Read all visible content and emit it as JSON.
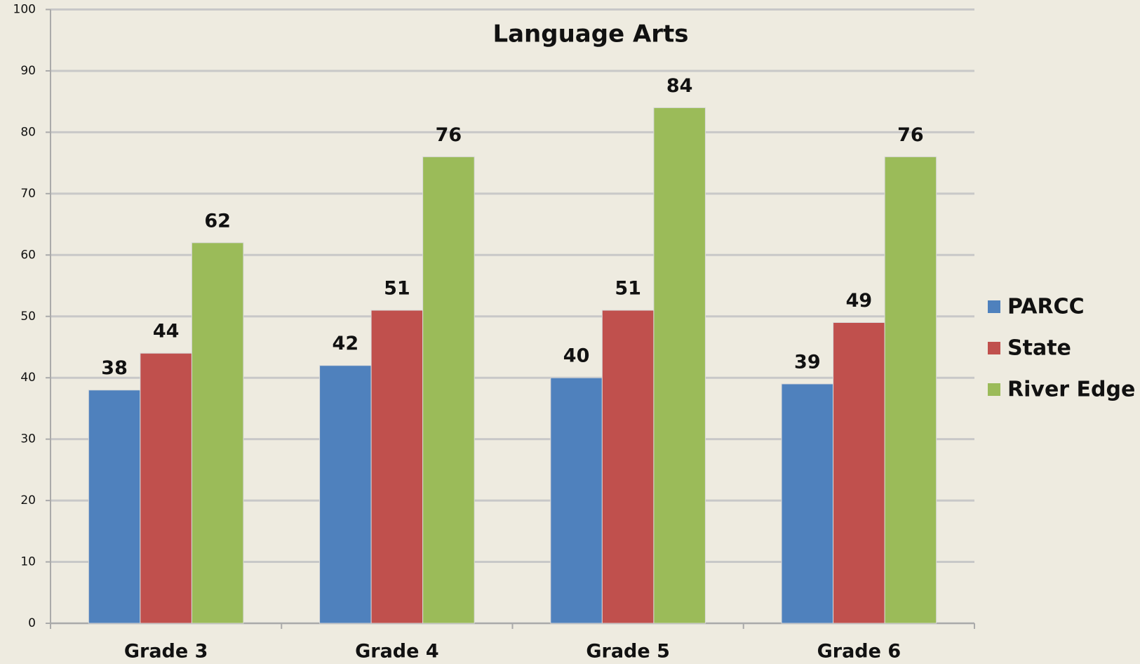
{
  "chart_data": {
    "type": "bar",
    "title": "Language Arts",
    "categories": [
      "Grade 3",
      "Grade 4",
      "Grade 5",
      "Grade 6"
    ],
    "series": [
      {
        "name": "PARCC",
        "color": "#4f81bd",
        "values": [
          38,
          42,
          40,
          39
        ]
      },
      {
        "name": "State",
        "color": "#c0504d",
        "values": [
          44,
          51,
          51,
          49
        ]
      },
      {
        "name": "River Edge",
        "color": "#9bbb59",
        "values": [
          62,
          76,
          84,
          76
        ]
      }
    ],
    "ylim": [
      0,
      100
    ],
    "yticks": [
      0,
      10,
      20,
      30,
      40,
      50,
      60,
      70,
      80,
      90,
      100
    ],
    "grid": true,
    "legend": "right",
    "data_labels": true
  }
}
